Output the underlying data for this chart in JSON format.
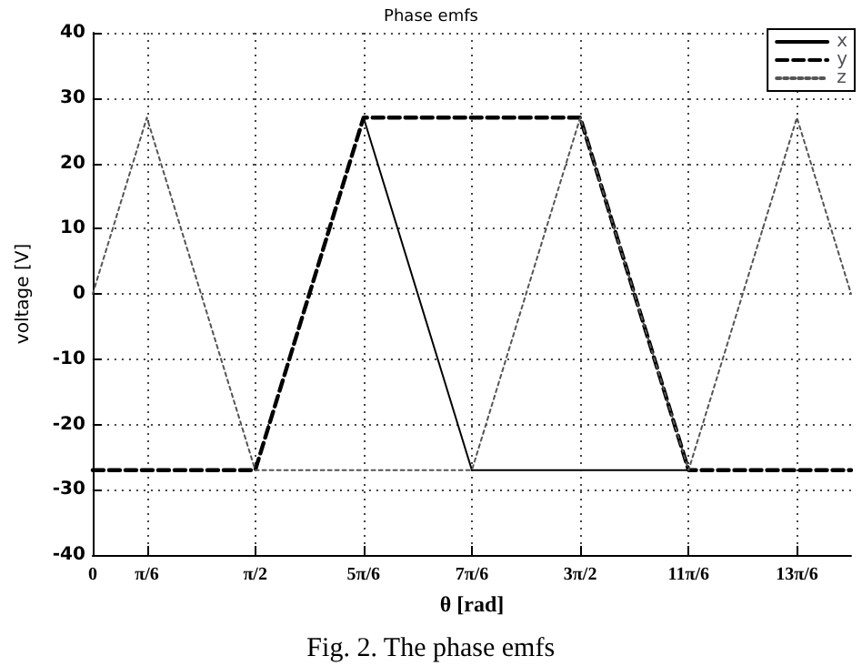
{
  "chart_data": {
    "type": "line",
    "title": "Phase emfs",
    "xlabel": "θ [rad]",
    "ylabel": "voltage [V]",
    "annotations": [
      "Fig. 2. The phase emfs"
    ],
    "series": [
      {
        "name": "x",
        "color": "#000000",
        "line_style": "solid",
        "x": [
          2.618,
          3.6652,
          5.7596
        ],
        "values": [
          27,
          -27,
          -27
        ]
      },
      {
        "name": "y",
        "color": "#000000",
        "line_style": "dashed",
        "x": [
          0,
          1.5708,
          2.618,
          4.7124,
          5.7596,
          7.3304
        ],
        "values": [
          -27,
          -27,
          27,
          27,
          -27,
          -27
        ]
      },
      {
        "name": "z",
        "color": "#555555",
        "line_style": "dotted",
        "x": [
          0,
          0.5236,
          1.5708,
          3.6652,
          4.7124,
          5.7596,
          6.8068,
          7.3304
        ],
        "values": [
          0,
          27,
          -27,
          -27,
          27,
          -27,
          27,
          0
        ]
      }
    ],
    "xlim": [
      0,
      7.3304
    ],
    "xticks": [
      0,
      {
        "value": 0.5236,
        "label": "π/6"
      },
      {
        "value": 1.5708,
        "label": "π/2"
      },
      {
        "value": 2.618,
        "label": "5π/6"
      },
      {
        "value": 3.6652,
        "label": "7π/6"
      },
      {
        "value": 4.7124,
        "label": "3π/2"
      },
      {
        "value": 5.7596,
        "label": "11π/6"
      },
      {
        "value": 6.8068,
        "label": "13π/6"
      }
    ],
    "ylim": [
      -40,
      40
    ],
    "yticks": [
      -40,
      -30,
      -20,
      -10,
      0,
      10,
      20,
      30,
      40
    ],
    "grid": true,
    "legend": "top right",
    "marker": "none"
  }
}
